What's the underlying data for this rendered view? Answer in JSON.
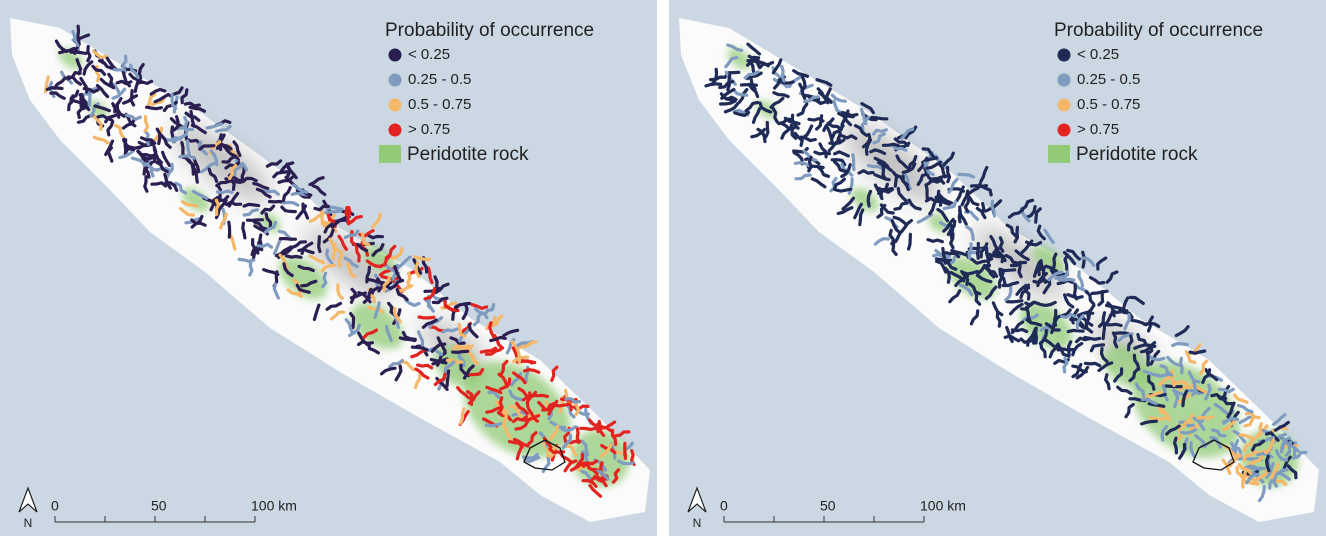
{
  "panels": [
    {
      "legend": {
        "title": "Probability of occurrence",
        "items": [
          {
            "label": "< 0.25",
            "color": "#2b1f52"
          },
          {
            "label": "0.25 - 0.5",
            "color": "#7f9cc0"
          },
          {
            "label": "0.5 - 0.75",
            "color": "#f5b86a"
          },
          {
            "label": "> 0.75",
            "color": "#e2231f"
          }
        ],
        "rock": {
          "label": "Peridotite rock",
          "color": "#92cb77"
        }
      },
      "scale": {
        "labels": [
          "0",
          "50",
          "100 km"
        ]
      },
      "north": "N"
    },
    {
      "legend": {
        "title": "Probability of occurrence",
        "items": [
          {
            "label": "< 0.25",
            "color": "#1f2b56"
          },
          {
            "label": "0.25 - 0.5",
            "color": "#7f9cc0"
          },
          {
            "label": "0.5 - 0.75",
            "color": "#f5b86a"
          },
          {
            "label": "> 0.75",
            "color": "#e2231f"
          }
        ],
        "rock": {
          "label": "Peridotite rock",
          "color": "#92cb77"
        }
      },
      "scale": {
        "labels": [
          "0",
          "50",
          "100 km"
        ]
      },
      "north": "N"
    }
  ]
}
